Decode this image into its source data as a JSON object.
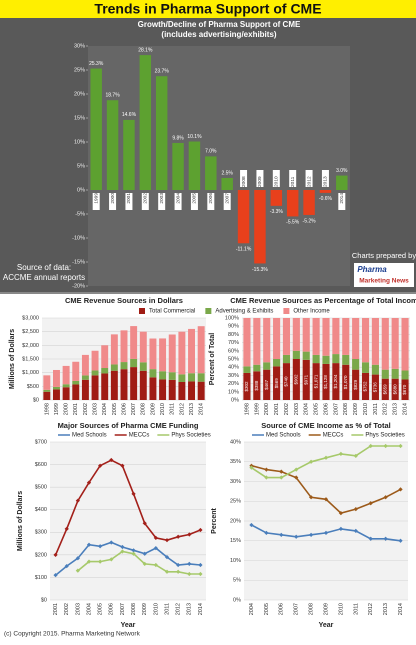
{
  "title": "Trends in Pharma Support of CME",
  "source": [
    "Source of data:",
    "ACCME annual reports"
  ],
  "credit": "Charts prepared by",
  "logo": [
    "Pharma",
    "Marketing News"
  ],
  "copyright": "(c) Copyright 2015. Pharma Marketing Network",
  "chart_data": [
    {
      "type": "stacked_bar",
      "title": "CME Revenue Sources in Dollars",
      "ylabel": "Millions of Dollars",
      "categories": [
        "1998",
        "1999",
        "2000",
        "2001",
        "2002",
        "2003",
        "2004",
        "2005",
        "2006",
        "2007",
        "2008",
        "2009",
        "2010",
        "2011",
        "2012",
        "2013",
        "2014"
      ],
      "ylim": [
        0,
        3000
      ],
      "yticks": [
        {
          "value": 0,
          "label": "$0"
        },
        {
          "value": 500,
          "label": "$500"
        },
        {
          "value": 1000,
          "label": "$1,000"
        },
        {
          "value": 1500,
          "label": "$1,500"
        },
        {
          "value": 2000,
          "label": "$2,000"
        },
        {
          "value": 2500,
          "label": "$2,500"
        },
        {
          "value": 3000,
          "label": "$3,000"
        }
      ],
      "grid": true,
      "legend": "top",
      "series": [
        {
          "name": "Total Commercial",
          "color": "#a01c14",
          "values": [
            302,
            388,
            467,
            569,
            740,
            902,
            971,
            1071,
            1128,
            1204,
            1070,
            829,
            752,
            736,
            659,
            680,
            670
          ],
          "value_labels": [
            "$302",
            "$388",
            "$467",
            "$569",
            "$740",
            "$902",
            "$971",
            "$1,071",
            "$1,128",
            "$1,204",
            "$1,070",
            "$829",
            "$752",
            "$736",
            "$659",
            "$680",
            "$670"
          ]
        },
        {
          "name": "Advertising & Exhibits",
          "color": "#7aa84a",
          "values": [
            70,
            90,
            110,
            130,
            160,
            180,
            200,
            230,
            260,
            300,
            310,
            300,
            300,
            280,
            280,
            300,
            310
          ]
        },
        {
          "name": "Other Income",
          "color": "#f08a8a",
          "values": [
            530,
            620,
            670,
            700,
            750,
            720,
            830,
            1100,
            1160,
            1200,
            1120,
            1120,
            1200,
            1380,
            1560,
            1620,
            1720
          ]
        }
      ]
    },
    {
      "type": "stacked_bar",
      "title": "CME Revenue Sources as Percentage of Total Income",
      "ylabel": "Percent of Total",
      "categories": [
        "1998",
        "1999",
        "2000",
        "2001",
        "2002",
        "2003",
        "2004",
        "2005",
        "2006",
        "2007",
        "2008",
        "2009",
        "2010",
        "2011",
        "2012",
        "2013",
        "2014"
      ],
      "ylim": [
        0,
        100
      ],
      "yticks": [
        {
          "value": 0,
          "label": "0%"
        },
        {
          "value": 10,
          "label": "10%"
        },
        {
          "value": 20,
          "label": "20%"
        },
        {
          "value": 30,
          "label": "30%"
        },
        {
          "value": 40,
          "label": "40%"
        },
        {
          "value": 50,
          "label": "50%"
        },
        {
          "value": 60,
          "label": "60%"
        },
        {
          "value": 70,
          "label": "70%"
        },
        {
          "value": 80,
          "label": "80%"
        },
        {
          "value": 90,
          "label": "90%"
        },
        {
          "value": 100,
          "label": "100%"
        }
      ],
      "grid": true,
      "series": [
        {
          "name": "Total Commercial",
          "color": "#a01c14",
          "values": [
            33,
            35,
            37,
            41,
            45,
            50,
            49,
            45,
            44,
            45,
            43,
            37,
            33,
            31,
            26,
            26,
            25
          ]
        },
        {
          "name": "Advertising & Exhibits",
          "color": "#7aa84a",
          "values": [
            8,
            8,
            9,
            9,
            10,
            10,
            10,
            10,
            10,
            11,
            12,
            13,
            13,
            12,
            11,
            12,
            11
          ]
        },
        {
          "name": "Other Income",
          "color": "#f08a8a",
          "values": [
            59,
            57,
            54,
            50,
            45,
            40,
            41,
            45,
            46,
            44,
            45,
            50,
            54,
            57,
            63,
            62,
            64
          ]
        }
      ]
    },
    {
      "type": "bar",
      "title": "Growth/Decline of Pharma Support of CME",
      "subtitle": "(includes advertising/exhibits)",
      "categories": [
        "1999",
        "2000",
        "2001",
        "2002",
        "2003",
        "2004",
        "2005",
        "2006",
        "2007",
        "2008",
        "2009",
        "2010",
        "2011",
        "2012",
        "2013",
        "2014"
      ],
      "values": [
        25.3,
        18.7,
        14.6,
        28.1,
        23.7,
        9.8,
        10.1,
        7.0,
        2.5,
        -11.1,
        -15.3,
        -3.3,
        -5.5,
        -5.2,
        -0.6,
        3.0
      ],
      "value_labels": [
        "25.3%",
        "18.7%",
        "14.6%",
        "28.1%",
        "23.7%",
        "9.8%",
        "10.1%",
        "7.0%",
        "2.5%",
        "-11.1%",
        "-15.3%",
        "-3.3%",
        "-5.5%",
        "-5.2%",
        "-0.6%",
        "3.0%"
      ],
      "color": "#5da130",
      "negative_color": "#e8401c",
      "ylim": [
        -20,
        30
      ],
      "yticks": [
        {
          "value": -20,
          "label": "-20%"
        },
        {
          "value": -15,
          "label": "-15%"
        },
        {
          "value": -10,
          "label": "-10%"
        },
        {
          "value": -5,
          "label": "-5%"
        },
        {
          "value": 0,
          "label": "0%"
        },
        {
          "value": 5,
          "label": "5%"
        },
        {
          "value": 10,
          "label": "10%"
        },
        {
          "value": 15,
          "label": "15%"
        },
        {
          "value": 20,
          "label": "20%"
        },
        {
          "value": 25,
          "label": "25%"
        },
        {
          "value": 30,
          "label": "30%"
        }
      ],
      "grid": false
    },
    {
      "type": "line",
      "title": "Major Sources of Pharma CME Funding",
      "ylabel": "Millions of Dollars",
      "xlabel": "Year",
      "categories": [
        "2001",
        "2002",
        "2003",
        "2004",
        "2005",
        "2006",
        "2007",
        "2008",
        "2009",
        "2010",
        "2011",
        "2012",
        "2013",
        "2014"
      ],
      "ylim": [
        0,
        700
      ],
      "yticks": [
        {
          "value": 0,
          "label": "$0"
        },
        {
          "value": 100,
          "label": "$100"
        },
        {
          "value": 200,
          "label": "$200"
        },
        {
          "value": 300,
          "label": "$300"
        },
        {
          "value": 400,
          "label": "$400"
        },
        {
          "value": 500,
          "label": "$500"
        },
        {
          "value": 600,
          "label": "$600"
        },
        {
          "value": 700,
          "label": "$700"
        }
      ],
      "grid": true,
      "legend": "top",
      "series": [
        {
          "name": "Med Schools",
          "color": "#4a7ebb",
          "values": [
            110,
            150,
            185,
            245,
            238,
            255,
            235,
            220,
            205,
            230,
            190,
            155,
            160,
            155
          ]
        },
        {
          "name": "MECCs",
          "color": "#a3201a",
          "values": [
            200,
            315,
            440,
            520,
            595,
            620,
            595,
            470,
            340,
            275,
            265,
            280,
            290,
            310
          ]
        },
        {
          "name": "Phys Societies",
          "color": "#a6c96a",
          "values": [
            null,
            null,
            130,
            170,
            170,
            180,
            215,
            205,
            160,
            155,
            125,
            125,
            115,
            115
          ]
        }
      ]
    },
    {
      "type": "line",
      "title": "Source of CME Income as % of Total",
      "ylabel": "Percent",
      "xlabel": "Year",
      "categories": [
        "2004",
        "2005",
        "2006",
        "2007",
        "2008",
        "2009",
        "2010",
        "2011",
        "2012",
        "2013",
        "2014"
      ],
      "ylim": [
        0,
        40
      ],
      "yticks": [
        {
          "value": 0,
          "label": "0%"
        },
        {
          "value": 5,
          "label": "5%"
        },
        {
          "value": 10,
          "label": "10%"
        },
        {
          "value": 15,
          "label": "15%"
        },
        {
          "value": 20,
          "label": "20%"
        },
        {
          "value": 25,
          "label": "25%"
        },
        {
          "value": 30,
          "label": "30%"
        },
        {
          "value": 35,
          "label": "35%"
        },
        {
          "value": 40,
          "label": "40%"
        }
      ],
      "grid": true,
      "legend": "top",
      "series": [
        {
          "name": "Med Schools",
          "color": "#4a7ebb",
          "values": [
            19,
            17,
            16.5,
            16,
            16.5,
            17,
            18,
            17.5,
            15.5,
            15.5,
            15
          ]
        },
        {
          "name": "MECCs",
          "color": "#9c5a1a",
          "values": [
            34,
            33,
            32.5,
            31,
            26,
            25.5,
            22,
            23,
            24.5,
            26,
            28
          ]
        },
        {
          "name": "Phys Societies",
          "color": "#a6c96a",
          "values": [
            33.5,
            31,
            31,
            33,
            35,
            36,
            37,
            36.5,
            39,
            39,
            39
          ]
        }
      ]
    }
  ]
}
